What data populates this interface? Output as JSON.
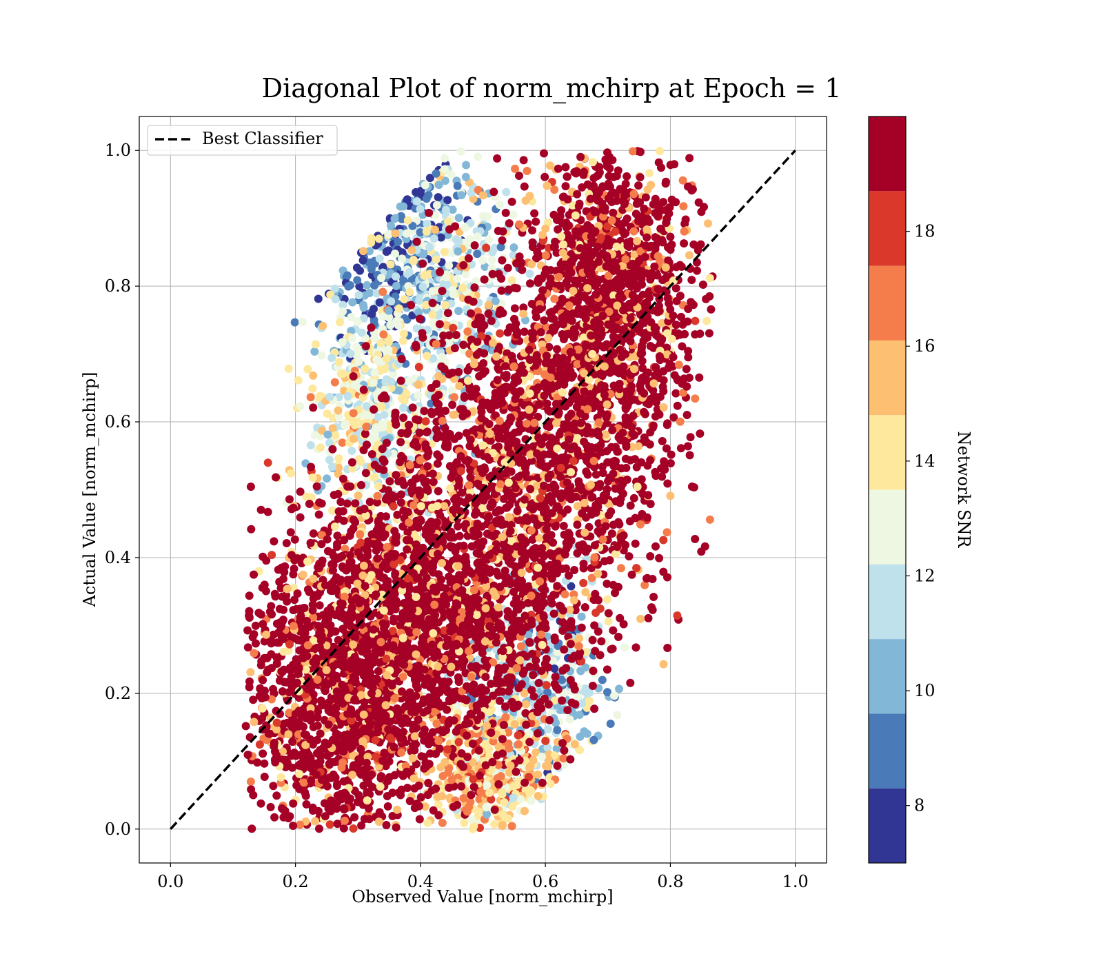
{
  "chart_data": {
    "type": "scatter",
    "title": "Diagonal Plot of norm_mchirp at Epoch = 1",
    "xlabel": "Observed Value [norm_mchirp]",
    "ylabel": "Actual Value [norm_mchirp]",
    "xlim": [
      -0.05,
      1.05
    ],
    "ylim": [
      -0.05,
      1.05
    ],
    "xticks": [
      0.0,
      0.2,
      0.4,
      0.6,
      0.8,
      1.0
    ],
    "yticks": [
      0.0,
      0.2,
      0.4,
      0.6,
      0.8,
      1.0
    ],
    "xtick_labels": [
      "0.0",
      "0.2",
      "0.4",
      "0.6",
      "0.8",
      "1.0"
    ],
    "ytick_labels": [
      "0.0",
      "0.2",
      "0.4",
      "0.6",
      "0.8",
      "1.0"
    ],
    "grid": true,
    "legend": {
      "placement": "upper-left",
      "entries": [
        "Best Classifier"
      ]
    },
    "reference_line": {
      "name": "Best Classifier",
      "x": [
        0.0,
        1.0
      ],
      "y": [
        0.0,
        1.0
      ],
      "style": "dashed",
      "color": "#000000"
    },
    "colorbar": {
      "label": "Network SNR",
      "range": [
        7,
        20
      ],
      "ticks": [
        8,
        10,
        12,
        14,
        16,
        18
      ],
      "tick_labels": [
        "8",
        "10",
        "12",
        "14",
        "16",
        "18"
      ],
      "levels": [
        {
          "from": 7.0,
          "to": 8.3,
          "color": "#313695"
        },
        {
          "from": 8.3,
          "to": 9.6,
          "color": "#4a7ab7"
        },
        {
          "from": 9.6,
          "to": 10.9,
          "color": "#82b7d7"
        },
        {
          "from": 10.9,
          "to": 12.2,
          "color": "#bfe1ec"
        },
        {
          "from": 12.2,
          "to": 13.5,
          "color": "#eef7e2"
        },
        {
          "from": 13.5,
          "to": 14.8,
          "color": "#fde89d"
        },
        {
          "from": 14.8,
          "to": 16.1,
          "color": "#fdbf71"
        },
        {
          "from": 16.1,
          "to": 17.4,
          "color": "#f57d4b"
        },
        {
          "from": 17.4,
          "to": 18.7,
          "color": "#d9382a"
        },
        {
          "from": 18.7,
          "to": 20.0,
          "color": "#a50026"
        }
      ]
    },
    "series": [
      {
        "distribution": "band along the diagonal; observed value lies roughly 0.12 to 0.86, actual value 0 to 1, points with higher observed than actual sit right of the diagonal",
        "color_by": "Network SNR",
        "clusters": [
          {
            "x_center": 0.7,
            "y_center": 0.78,
            "x_spread": 0.07,
            "y_spread": 0.13,
            "snr": 20
          },
          {
            "x_center": 0.58,
            "y_center": 0.52,
            "x_spread": 0.1,
            "y_spread": 0.15,
            "snr": 20
          },
          {
            "x_center": 0.42,
            "y_center": 0.32,
            "x_spread": 0.1,
            "y_spread": 0.13,
            "snr": 20
          },
          {
            "x_center": 0.27,
            "y_center": 0.2,
            "x_spread": 0.08,
            "y_spread": 0.12,
            "snr": 20
          },
          {
            "x_center": 0.35,
            "y_center": 0.85,
            "x_spread": 0.06,
            "y_spread": 0.09,
            "snr": 9
          },
          {
            "x_center": 0.44,
            "y_center": 0.82,
            "x_spread": 0.06,
            "y_spread": 0.1,
            "snr": 12
          },
          {
            "x_center": 0.32,
            "y_center": 0.62,
            "x_spread": 0.05,
            "y_spread": 0.08,
            "snr": 13
          },
          {
            "x_center": 0.58,
            "y_center": 0.22,
            "x_spread": 0.06,
            "y_spread": 0.08,
            "snr": 11
          },
          {
            "x_center": 0.52,
            "y_center": 0.08,
            "x_spread": 0.06,
            "y_spread": 0.05,
            "snr": 15
          }
        ]
      }
    ]
  }
}
